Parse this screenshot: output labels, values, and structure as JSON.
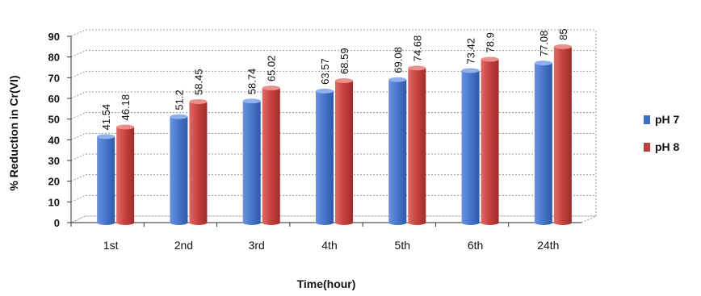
{
  "chart_data": {
    "type": "bar",
    "categories": [
      "1st",
      "2nd",
      "3rd",
      "4th",
      "5th",
      "6th",
      "24th"
    ],
    "series": [
      {
        "name": "pH 7",
        "color": "#3f6fc4",
        "values": [
          41.54,
          51.2,
          58.74,
          63.57,
          69.08,
          73.42,
          77.08
        ],
        "labels": [
          "41.54",
          "51.2",
          "58.74",
          "63.57",
          "69.08",
          "73.42",
          "77.08"
        ]
      },
      {
        "name": "pH 8",
        "color": "#c0403f",
        "values": [
          46.18,
          58.45,
          65.02,
          68.59,
          74.68,
          78.9,
          85
        ],
        "labels": [
          "46.18",
          "58.45",
          "65.02",
          "68.59",
          "74.68",
          "78.9",
          "85"
        ]
      }
    ],
    "title": "",
    "xlabel": "Time(hour)",
    "ylabel": "% Reduction in Cr(VI)",
    "ylim": [
      0,
      90
    ],
    "yticks": [
      0,
      10,
      20,
      30,
      40,
      50,
      60,
      70,
      80,
      90
    ],
    "grid": true,
    "legend": "right"
  }
}
